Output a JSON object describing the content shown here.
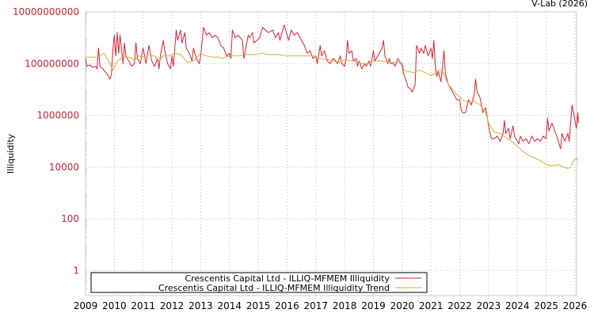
{
  "credit": "V-Lab (2026)",
  "chart_data": {
    "type": "line",
    "title": "",
    "xlabel": "",
    "ylabel": "Illiquidity",
    "yscale": "log",
    "ylim": [
      0.1,
      10000000000
    ],
    "xlim": [
      2009,
      2026.1
    ],
    "y_ticks": [
      "10000000000",
      "100000000",
      "1000000",
      "10000",
      "100",
      "1"
    ],
    "y_tick_values": [
      10000000000,
      100000000,
      1000000,
      10000,
      100,
      1
    ],
    "x_ticks": [
      "2009",
      "2010",
      "2011",
      "2012",
      "2013",
      "2014",
      "2015",
      "2016",
      "2017",
      "2018",
      "2019",
      "2020",
      "2021",
      "2022",
      "2023",
      "2024",
      "2025",
      "2026"
    ],
    "grid": true,
    "legend_position": "bottom-inside",
    "colors": {
      "illiquidity": "#dd2233",
      "trend": "#d4b040",
      "ytick": "#cc2233"
    },
    "series": [
      {
        "name": "Crescentis Capital Ltd - ILLIQ-MFMEM Illiquidity",
        "color": "#dd2233",
        "points": [
          [
            2009.0,
            8.2
          ],
          [
            2009.05,
            7.9
          ],
          [
            2009.15,
            7.95
          ],
          [
            2009.25,
            7.85
          ],
          [
            2009.35,
            7.9
          ],
          [
            2009.4,
            7.8
          ],
          [
            2009.45,
            8.6
          ],
          [
            2009.5,
            7.9
          ],
          [
            2009.6,
            7.8
          ],
          [
            2009.75,
            7.6
          ],
          [
            2009.85,
            7.4
          ],
          [
            2009.9,
            7.6
          ],
          [
            2009.95,
            8.5
          ],
          [
            2010.0,
            9.1
          ],
          [
            2010.05,
            8.3
          ],
          [
            2010.1,
            9.2
          ],
          [
            2010.15,
            8.4
          ],
          [
            2010.2,
            9.1
          ],
          [
            2010.3,
            8.0
          ],
          [
            2010.35,
            8.8
          ],
          [
            2010.4,
            8.3
          ],
          [
            2010.5,
            8.1
          ],
          [
            2010.6,
            7.9
          ],
          [
            2010.7,
            8.0
          ],
          [
            2010.75,
            8.8
          ],
          [
            2010.8,
            8.2
          ],
          [
            2010.9,
            8.0
          ],
          [
            2011.0,
            8.6
          ],
          [
            2011.05,
            8.3
          ],
          [
            2011.1,
            8.0
          ],
          [
            2011.2,
            8.7
          ],
          [
            2011.25,
            8.4
          ],
          [
            2011.3,
            8.1
          ],
          [
            2011.4,
            7.9
          ],
          [
            2011.5,
            8.2
          ],
          [
            2011.55,
            7.8
          ],
          [
            2011.6,
            8.3
          ],
          [
            2011.7,
            8.9
          ],
          [
            2011.75,
            8.5
          ],
          [
            2011.85,
            8.0
          ],
          [
            2011.95,
            7.8
          ],
          [
            2012.0,
            8.3
          ],
          [
            2012.05,
            7.9
          ],
          [
            2012.15,
            9.3
          ],
          [
            2012.2,
            8.9
          ],
          [
            2012.3,
            9.3
          ],
          [
            2012.35,
            8.8
          ],
          [
            2012.45,
            9.2
          ],
          [
            2012.5,
            8.6
          ],
          [
            2012.6,
            8.4
          ],
          [
            2012.7,
            8.1
          ],
          [
            2012.75,
            8.6
          ],
          [
            2012.85,
            8.2
          ],
          [
            2012.95,
            8.0
          ],
          [
            2013.0,
            8.3
          ],
          [
            2013.1,
            9.4
          ],
          [
            2013.2,
            9.1
          ],
          [
            2013.3,
            9.2
          ],
          [
            2013.4,
            9.0
          ],
          [
            2013.5,
            9.1
          ],
          [
            2013.6,
            9.0
          ],
          [
            2013.7,
            8.7
          ],
          [
            2013.8,
            8.6
          ],
          [
            2013.9,
            8.3
          ],
          [
            2014.0,
            8.4
          ],
          [
            2014.05,
            8.2
          ],
          [
            2014.1,
            9.3
          ],
          [
            2014.2,
            9.0
          ],
          [
            2014.3,
            9.1
          ],
          [
            2014.45,
            8.9
          ],
          [
            2014.5,
            8.2
          ],
          [
            2014.55,
            8.5
          ],
          [
            2014.65,
            9.1
          ],
          [
            2014.7,
            9.0
          ],
          [
            2014.8,
            9.2
          ],
          [
            2014.85,
            8.8
          ],
          [
            2014.95,
            8.9
          ],
          [
            2015.05,
            9.0
          ],
          [
            2015.15,
            9.4
          ],
          [
            2015.25,
            9.3
          ],
          [
            2015.35,
            9.2
          ],
          [
            2015.5,
            9.3
          ],
          [
            2015.6,
            9.0
          ],
          [
            2015.7,
            9.2
          ],
          [
            2015.75,
            8.9
          ],
          [
            2015.85,
            9.3
          ],
          [
            2015.9,
            9.5
          ],
          [
            2016.0,
            9.1
          ],
          [
            2016.05,
            8.9
          ],
          [
            2016.15,
            9.3
          ],
          [
            2016.25,
            9.1
          ],
          [
            2016.35,
            9.2
          ],
          [
            2016.5,
            8.9
          ],
          [
            2016.6,
            8.7
          ],
          [
            2016.7,
            8.4
          ],
          [
            2016.8,
            8.5
          ],
          [
            2016.9,
            8.2
          ],
          [
            2017.0,
            8.3
          ],
          [
            2017.05,
            8.0
          ],
          [
            2017.15,
            8.7
          ],
          [
            2017.2,
            8.3
          ],
          [
            2017.3,
            8.5
          ],
          [
            2017.4,
            8.1
          ],
          [
            2017.5,
            8.0
          ],
          [
            2017.6,
            8.2
          ],
          [
            2017.7,
            8.1
          ],
          [
            2017.75,
            8.0
          ],
          [
            2017.85,
            8.3
          ],
          [
            2017.9,
            8.0
          ],
          [
            2018.0,
            7.9
          ],
          [
            2018.05,
            8.2
          ],
          [
            2018.1,
            8.9
          ],
          [
            2018.15,
            8.4
          ],
          [
            2018.25,
            8.5
          ],
          [
            2018.3,
            8.1
          ],
          [
            2018.4,
            8.2
          ],
          [
            2018.45,
            7.9
          ],
          [
            2018.5,
            8.1
          ],
          [
            2018.6,
            7.8
          ],
          [
            2018.7,
            8.0
          ],
          [
            2018.75,
            7.9
          ],
          [
            2018.85,
            8.1
          ],
          [
            2018.9,
            7.9
          ],
          [
            2019.0,
            8.5
          ],
          [
            2019.05,
            8.1
          ],
          [
            2019.15,
            8.3
          ],
          [
            2019.2,
            8.4
          ],
          [
            2019.3,
            8.6
          ],
          [
            2019.35,
            8.9
          ],
          [
            2019.4,
            8.3
          ],
          [
            2019.5,
            8.0
          ],
          [
            2019.55,
            8.2
          ],
          [
            2019.6,
            8.0
          ],
          [
            2019.7,
            8.0
          ],
          [
            2019.75,
            7.9
          ],
          [
            2019.85,
            8.2
          ],
          [
            2019.9,
            8.1
          ],
          [
            2019.95,
            8.0
          ],
          [
            2020.0,
            7.9
          ],
          [
            2020.05,
            7.6
          ],
          [
            2020.15,
            7.3
          ],
          [
            2020.2,
            7.1
          ],
          [
            2020.3,
            7.0
          ],
          [
            2020.35,
            6.9
          ],
          [
            2020.45,
            7.2
          ],
          [
            2020.5,
            8.7
          ],
          [
            2020.6,
            8.4
          ],
          [
            2020.65,
            8.6
          ],
          [
            2020.75,
            8.4
          ],
          [
            2020.8,
            8.7
          ],
          [
            2020.9,
            8.3
          ],
          [
            2021.0,
            8.6
          ],
          [
            2021.05,
            8.2
          ],
          [
            2021.1,
            8.9
          ],
          [
            2021.15,
            7.9
          ],
          [
            2021.2,
            7.5
          ],
          [
            2021.25,
            7.7
          ],
          [
            2021.35,
            7.3
          ],
          [
            2021.45,
            8.5
          ],
          [
            2021.5,
            7.6
          ],
          [
            2021.6,
            7.2
          ],
          [
            2021.7,
            7.0
          ],
          [
            2021.8,
            6.8
          ],
          [
            2021.9,
            6.6
          ],
          [
            2022.0,
            6.6
          ],
          [
            2022.05,
            6.2
          ],
          [
            2022.1,
            6.1
          ],
          [
            2022.2,
            6.1
          ],
          [
            2022.3,
            6.6
          ],
          [
            2022.4,
            6.4
          ],
          [
            2022.5,
            6.8
          ],
          [
            2022.55,
            7.4
          ],
          [
            2022.6,
            6.9
          ],
          [
            2022.7,
            6.7
          ],
          [
            2022.8,
            6.1
          ],
          [
            2022.9,
            6.3
          ],
          [
            2023.0,
            5.6
          ],
          [
            2023.05,
            5.3
          ],
          [
            2023.1,
            5.1
          ],
          [
            2023.2,
            5.1
          ],
          [
            2023.3,
            5.2
          ],
          [
            2023.4,
            5.0
          ],
          [
            2023.5,
            5.3
          ],
          [
            2023.55,
            5.8
          ],
          [
            2023.6,
            5.3
          ],
          [
            2023.7,
            5.5
          ],
          [
            2023.75,
            5.1
          ],
          [
            2023.85,
            5.6
          ],
          [
            2023.9,
            5.2
          ],
          [
            2024.0,
            5.0
          ],
          [
            2024.05,
            4.9
          ],
          [
            2024.1,
            5.2
          ],
          [
            2024.2,
            5.0
          ],
          [
            2024.3,
            5.1
          ],
          [
            2024.4,
            4.9
          ],
          [
            2024.5,
            5.2
          ],
          [
            2024.6,
            5.0
          ],
          [
            2024.7,
            5.1
          ],
          [
            2024.8,
            5.0
          ],
          [
            2024.9,
            5.2
          ],
          [
            2025.0,
            5.1
          ],
          [
            2025.05,
            5.9
          ],
          [
            2025.1,
            5.4
          ],
          [
            2025.2,
            5.7
          ],
          [
            2025.3,
            5.4
          ],
          [
            2025.4,
            5.1
          ],
          [
            2025.5,
            4.7
          ],
          [
            2025.55,
            5.3
          ],
          [
            2025.65,
            5.0
          ],
          [
            2025.75,
            5.3
          ],
          [
            2025.8,
            5.0
          ],
          [
            2025.9,
            6.4
          ],
          [
            2026.0,
            5.8
          ],
          [
            2026.05,
            5.5
          ],
          [
            2026.1,
            6.1
          ],
          [
            2026.12,
            5.7
          ]
        ]
      },
      {
        "name": "Crescentis Capital Ltd - ILLIQ-MFMEM Illiquidity Trend",
        "color": "#d4b040",
        "points": [
          [
            2009.0,
            8.25
          ],
          [
            2009.4,
            8.25
          ],
          [
            2009.65,
            8.4
          ],
          [
            2009.8,
            8.1
          ],
          [
            2009.95,
            7.75
          ],
          [
            2010.1,
            8.1
          ],
          [
            2010.3,
            8.25
          ],
          [
            2010.5,
            8.25
          ],
          [
            2010.7,
            8.15
          ],
          [
            2010.85,
            8.3
          ],
          [
            2011.0,
            8.25
          ],
          [
            2011.2,
            8.35
          ],
          [
            2011.4,
            8.3
          ],
          [
            2011.55,
            8.1
          ],
          [
            2011.7,
            8.3
          ],
          [
            2011.9,
            8.3
          ],
          [
            2012.1,
            8.4
          ],
          [
            2012.3,
            8.35
          ],
          [
            2012.55,
            8.05
          ],
          [
            2012.75,
            8.1
          ],
          [
            2013.0,
            8.4
          ],
          [
            2013.2,
            8.3
          ],
          [
            2013.4,
            8.25
          ],
          [
            2013.6,
            8.25
          ],
          [
            2013.75,
            8.2
          ],
          [
            2014.0,
            8.3
          ],
          [
            2014.3,
            8.3
          ],
          [
            2014.6,
            8.35
          ],
          [
            2014.9,
            8.35
          ],
          [
            2015.1,
            8.4
          ],
          [
            2015.4,
            8.35
          ],
          [
            2015.7,
            8.35
          ],
          [
            2016.0,
            8.3
          ],
          [
            2016.3,
            8.3
          ],
          [
            2016.6,
            8.3
          ],
          [
            2016.9,
            8.3
          ],
          [
            2017.15,
            8.2
          ],
          [
            2017.4,
            8.15
          ],
          [
            2017.6,
            8.1
          ],
          [
            2017.8,
            8.05
          ],
          [
            2018.0,
            8.15
          ],
          [
            2018.3,
            8.1
          ],
          [
            2018.6,
            8.0
          ],
          [
            2018.9,
            8.0
          ],
          [
            2019.0,
            8.1
          ],
          [
            2019.3,
            8.1
          ],
          [
            2019.6,
            8.05
          ],
          [
            2019.9,
            8.05
          ],
          [
            2020.0,
            8.05
          ],
          [
            2020.05,
            7.75
          ],
          [
            2020.2,
            7.7
          ],
          [
            2020.4,
            7.65
          ],
          [
            2020.6,
            7.75
          ],
          [
            2020.8,
            7.65
          ],
          [
            2021.0,
            7.55
          ],
          [
            2021.1,
            7.6
          ],
          [
            2021.3,
            7.75
          ],
          [
            2021.4,
            7.7
          ],
          [
            2021.6,
            7.2
          ],
          [
            2021.9,
            6.8
          ],
          [
            2022.1,
            6.6
          ],
          [
            2022.3,
            6.5
          ],
          [
            2022.5,
            6.55
          ],
          [
            2022.7,
            6.4
          ],
          [
            2022.9,
            6.1
          ],
          [
            2023.0,
            5.7
          ],
          [
            2023.2,
            5.35
          ],
          [
            2023.4,
            5.3
          ],
          [
            2023.6,
            5.15
          ],
          [
            2023.8,
            5.0
          ],
          [
            2024.0,
            4.8
          ],
          [
            2024.2,
            4.6
          ],
          [
            2024.4,
            4.45
          ],
          [
            2024.6,
            4.35
          ],
          [
            2024.8,
            4.25
          ],
          [
            2025.0,
            4.1
          ],
          [
            2025.2,
            4.05
          ],
          [
            2025.4,
            4.1
          ],
          [
            2025.6,
            4.0
          ],
          [
            2025.75,
            3.95
          ],
          [
            2025.85,
            4.0
          ],
          [
            2025.95,
            4.25
          ],
          [
            2026.05,
            4.35
          ],
          [
            2026.12,
            4.25
          ]
        ]
      }
    ],
    "note": "point format: [year, log10(illiquidity)]"
  }
}
